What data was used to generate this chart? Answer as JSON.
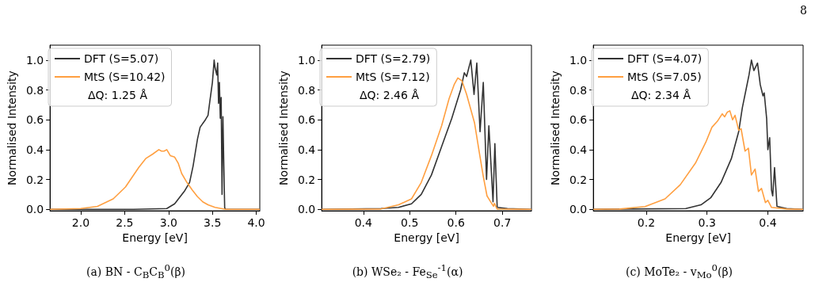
{
  "chart_data": [
    {
      "type": "line",
      "title": "(a) BN - C$_{B}$C$_{B}$$^{0}$(β)",
      "xlabel": "Energy [eV]",
      "ylabel": "Normalised Intensity",
      "legend": "top left",
      "annotations": [
        "ΔQ: 1.25 Å"
      ],
      "xlim": [
        1.65,
        4.04
      ],
      "xticks": [
        {
          "value": 2,
          "label": "2.0"
        },
        {
          "value": 2.5,
          "label": "2.5"
        },
        {
          "value": 3,
          "label": "3.0"
        },
        {
          "value": 3.5,
          "label": "3.5"
        },
        {
          "value": 4,
          "label": "4.0"
        }
      ],
      "ylim": [
        -0.01,
        1.1
      ],
      "yticks": [
        {
          "value": 0,
          "label": "0.0"
        },
        {
          "value": 0.2,
          "label": "0.2"
        },
        {
          "value": 0.4,
          "label": "0.4"
        },
        {
          "value": 0.6,
          "label": "0.6"
        },
        {
          "value": 0.8,
          "label": "0.8"
        },
        {
          "value": 1,
          "label": "1.0"
        }
      ],
      "series": [
        {
          "name": "DFT (S=5.07)",
          "color": "#333333",
          "x": [
            1.65,
            2.6,
            2.98,
            3.07,
            3.18,
            3.24,
            3.28,
            3.33,
            3.36,
            3.42,
            3.45,
            3.47,
            3.5,
            3.52,
            3.53,
            3.55,
            3.56,
            3.57,
            3.58,
            3.59,
            3.6,
            3.61,
            3.615,
            3.62,
            3.63,
            3.64,
            3.65,
            3.7,
            4.04
          ],
          "values": [
            0,
            0,
            0.005,
            0.037,
            0.12,
            0.18,
            0.29,
            0.47,
            0.55,
            0.6,
            0.63,
            0.72,
            0.85,
            1.0,
            0.95,
            0.9,
            0.98,
            0.71,
            0.85,
            0.61,
            0.75,
            0.1,
            0.4,
            0.62,
            0.3,
            0.01,
            0,
            0,
            0
          ]
        },
        {
          "name": "MtS (S=10.42)",
          "color": "#ff9f40",
          "x": [
            1.65,
            2.0,
            2.19,
            2.37,
            2.51,
            2.66,
            2.74,
            2.82,
            2.89,
            2.92,
            2.95,
            2.98,
            3.02,
            3.07,
            3.11,
            3.15,
            3.21,
            3.27,
            3.33,
            3.39,
            3.45,
            3.53,
            3.65,
            4.04
          ],
          "values": [
            0,
            0.005,
            0.02,
            0.07,
            0.15,
            0.28,
            0.34,
            0.37,
            0.4,
            0.39,
            0.39,
            0.4,
            0.36,
            0.35,
            0.31,
            0.24,
            0.18,
            0.13,
            0.085,
            0.05,
            0.03,
            0.013,
            0,
            0
          ]
        }
      ]
    },
    {
      "type": "line",
      "title": "(b) WSe₂ - Fe$_{Se}$$^{-1}$(α)",
      "xlabel": "Energy [eV]",
      "ylabel": "Normalised Intensity",
      "legend": "top left",
      "annotations": [
        "ΔQ: 2.46 Å"
      ],
      "xlim": [
        0.31,
        0.763
      ],
      "xticks": [
        0.4,
        0.5,
        0.6,
        0.7
      ],
      "ylim": [
        -0.01,
        1.1
      ],
      "yticks": [
        {
          "value": 0,
          "label": "0.0"
        },
        {
          "value": 0.2,
          "label": "0.2"
        },
        {
          "value": 0.4,
          "label": "0.4"
        },
        {
          "value": 0.6,
          "label": "0.6"
        },
        {
          "value": 0.8,
          "label": "0.8"
        },
        {
          "value": 1,
          "label": "1.0"
        }
      ],
      "series": [
        {
          "name": "DFT (S=2.79)",
          "color": "#333333",
          "x": [
            0.31,
            0.438,
            0.476,
            0.504,
            0.525,
            0.547,
            0.569,
            0.591,
            0.602,
            0.61,
            0.618,
            0.623,
            0.632,
            0.639,
            0.645,
            0.652,
            0.659,
            0.666,
            0.671,
            0.68,
            0.684,
            0.689,
            0.711,
            0.763
          ],
          "values": [
            0,
            0.005,
            0.013,
            0.037,
            0.1,
            0.23,
            0.42,
            0.61,
            0.72,
            0.8,
            0.915,
            0.89,
            1.0,
            0.77,
            0.98,
            0.52,
            0.85,
            0.2,
            0.56,
            0.05,
            0.44,
            0.013,
            0.005,
            0
          ]
        },
        {
          "name": "MtS (S=7.12)",
          "color": "#ff9f40",
          "x": [
            0.31,
            0.438,
            0.476,
            0.504,
            0.525,
            0.547,
            0.569,
            0.585,
            0.596,
            0.604,
            0.613,
            0.623,
            0.64,
            0.651,
            0.659,
            0.667,
            0.675,
            0.681,
            0.683,
            0.689,
            0.763
          ],
          "values": [
            0,
            0.002,
            0.03,
            0.07,
            0.18,
            0.36,
            0.56,
            0.74,
            0.835,
            0.88,
            0.86,
            0.77,
            0.58,
            0.37,
            0.22,
            0.09,
            0.05,
            0.02,
            0.04,
            0.002,
            0
          ]
        }
      ]
    },
    {
      "type": "line",
      "title": "(c) MoTe₂ - v$_{Mo}$$^{0}$(β)",
      "xlabel": "Energy [eV]",
      "ylabel": "Normalised Intensity",
      "legend": "top left",
      "annotations": [
        "ΔQ: 2.34 Å",
        "8"
      ],
      "xlim": [
        0.113,
        0.458
      ],
      "xticks": [
        0.2,
        0.3,
        0.4
      ],
      "ylim": [
        -0.01,
        1.1
      ],
      "yticks": [
        {
          "value": 0,
          "label": "0.0"
        },
        {
          "value": 0.2,
          "label": "0.2"
        },
        {
          "value": 0.4,
          "label": "0.4"
        },
        {
          "value": 0.6,
          "label": "0.6"
        },
        {
          "value": 0.8,
          "label": "0.8"
        },
        {
          "value": 1,
          "label": "1.0"
        }
      ],
      "series": [
        {
          "name": "DFT (S=4.07)",
          "color": "#333333",
          "x": [
            0.113,
            0.265,
            0.29,
            0.306,
            0.323,
            0.34,
            0.352,
            0.358,
            0.365,
            0.369,
            0.373,
            0.377,
            0.383,
            0.3875,
            0.392,
            0.394,
            0.398,
            0.4,
            0.403,
            0.406,
            0.408,
            0.411,
            0.415,
            0.431,
            0.458
          ],
          "values": [
            0,
            0.005,
            0.03,
            0.077,
            0.18,
            0.34,
            0.52,
            0.68,
            0.82,
            0.9,
            1.0,
            0.93,
            0.98,
            0.835,
            0.76,
            0.78,
            0.61,
            0.4,
            0.48,
            0.13,
            0.09,
            0.28,
            0.02,
            0.005,
            0
          ]
        },
        {
          "name": "MtS (S=7.05)",
          "color": "#ff9f40",
          "x": [
            0.113,
            0.156,
            0.198,
            0.231,
            0.256,
            0.281,
            0.298,
            0.308,
            0.317,
            0.325,
            0.329,
            0.333,
            0.3375,
            0.342,
            0.346,
            0.352,
            0.356,
            0.3625,
            0.368,
            0.373,
            0.379,
            0.3845,
            0.3896,
            0.396,
            0.4,
            0.406,
            0.431,
            0.458
          ],
          "values": [
            0,
            0.002,
            0.018,
            0.07,
            0.165,
            0.31,
            0.45,
            0.55,
            0.59,
            0.64,
            0.62,
            0.65,
            0.66,
            0.6,
            0.63,
            0.53,
            0.54,
            0.39,
            0.41,
            0.23,
            0.27,
            0.12,
            0.14,
            0.045,
            0.06,
            0.013,
            0.002,
            0
          ]
        }
      ]
    }
  ]
}
